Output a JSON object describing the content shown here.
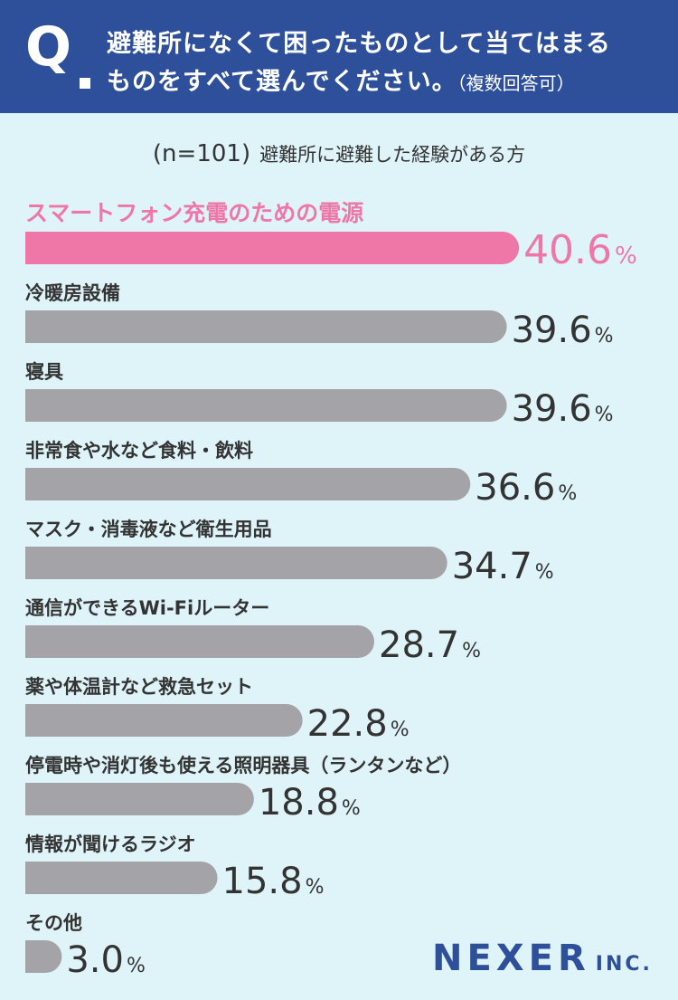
{
  "header": {
    "q_mark": "Q",
    "line1": "避難所になくて困ったものとして当てはまる",
    "line2": "ものをすべて選んでください。",
    "note": "（複数回答可）"
  },
  "sample": {
    "n_label": "(n=101)",
    "desc": "避難所に避難した経験がある方"
  },
  "colors": {
    "header_bg": "#2e4f9a",
    "highlight": "#ee77a8",
    "bar": "#a3a3a8",
    "background": "#dff4f8"
  },
  "chart_data": {
    "type": "bar",
    "orientation": "horizontal",
    "unit": "%",
    "categories": [
      "スマートフォン充電のための電源",
      "冷暖房設備",
      "寝具",
      "非常食や水など食料・飲料",
      "マスク・消毒液など衛生用品",
      "通信ができるWi-Fiルーター",
      "薬や体温計など救急セット",
      "停電時や消灯後も使える照明器具（ランタンなど）",
      "情報が聞けるラジオ",
      "その他"
    ],
    "values": [
      40.6,
      39.6,
      39.6,
      36.6,
      34.7,
      28.7,
      22.8,
      18.8,
      15.8,
      3.0
    ],
    "value_labels": [
      "40.6",
      "39.6",
      "39.6",
      "36.6",
      "34.7",
      "28.7",
      "22.8",
      "18.8",
      "15.8",
      "3.0"
    ],
    "highlight_index": 0
  },
  "logo": {
    "main": "NEXER",
    "sub": "INC."
  }
}
